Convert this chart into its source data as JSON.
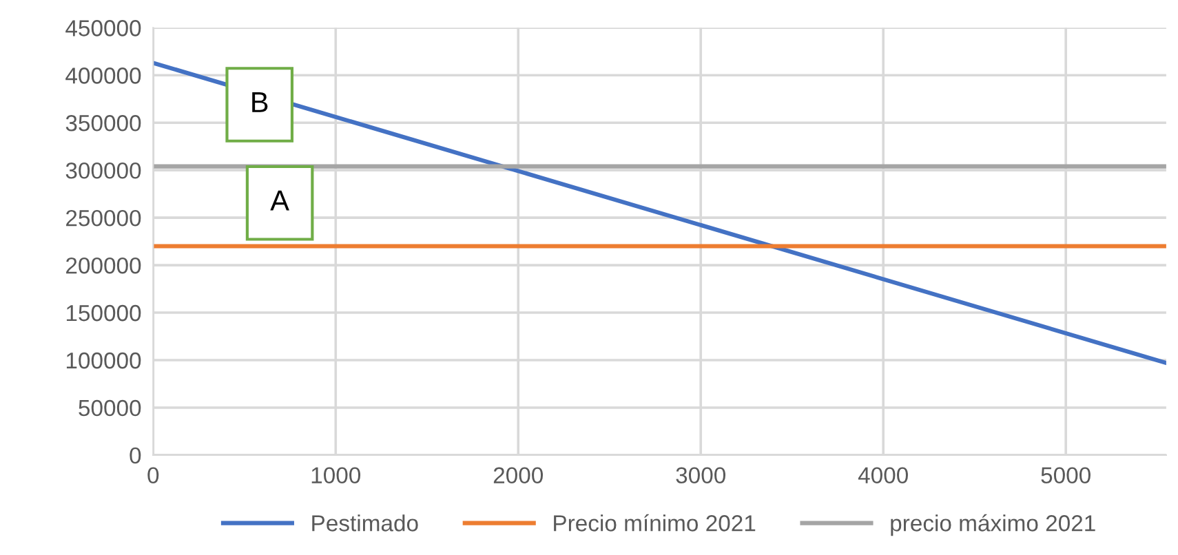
{
  "chart_data": {
    "type": "line",
    "series": [
      {
        "name": "Pestimado",
        "color": "#4472c4",
        "values": [
          413000,
          97000
        ]
      },
      {
        "name": "Precio mínimo 2021",
        "color": "#ed7d31",
        "values": [
          220000,
          220000
        ]
      },
      {
        "name": "precio máximo 2021",
        "color": "#a5a5a5",
        "values": [
          304000,
          304000
        ]
      }
    ],
    "x": [
      0,
      5550
    ],
    "annotations": [
      "B",
      "A"
    ],
    "xlim": [
      0,
      5550
    ],
    "xticks": [
      0,
      1000,
      2000,
      3000,
      4000,
      5000
    ],
    "ylim": [
      0,
      450000
    ],
    "yticks": [
      0,
      50000,
      100000,
      150000,
      200000,
      250000,
      300000,
      350000,
      400000,
      450000
    ],
    "grid": true,
    "legend": "bottom",
    "marker": "none",
    "line_style": "solid"
  }
}
